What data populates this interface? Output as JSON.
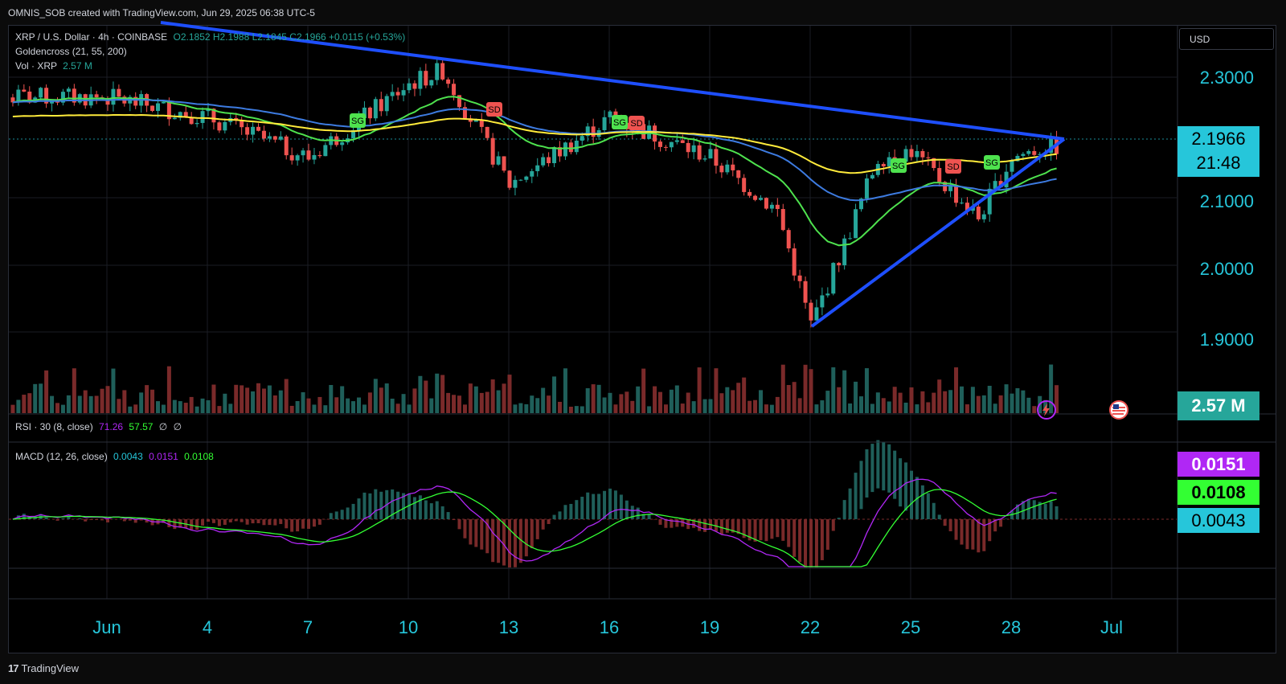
{
  "header": {
    "attribution": "OMNIS_SOB created with TradingView.com, Jun 29, 2025 06:38 UTC-5"
  },
  "footer": {
    "brand": "TradingView"
  },
  "legend": {
    "symbol": "XRP / U.S. Dollar · 4h · COINBASE",
    "ohlc": "O2.1852 H2.1988 L2.1845 C2.1966 +0.0115 (+0.53%)",
    "goldencross": "Goldencross (21, 55, 200)",
    "vol": "Vol · XRP",
    "vol_value": "2.57 M",
    "rsi": "RSI · 30 (8, close)",
    "rsi_v1": "71.26",
    "rsi_v2": "57.57",
    "rsi_v3": "∅",
    "rsi_v4": "∅",
    "macd": "MACD (12, 26, close)",
    "macd_hist": "0.0043",
    "macd_line": "0.0151",
    "macd_signal": "0.0108"
  },
  "axis": {
    "currency": "USD",
    "price_ticks": [
      "2.3000",
      "2.1000",
      "2.0000",
      "1.9000"
    ],
    "current_price": "2.1966",
    "countdown": "21:48",
    "volume_tag": "2.57 M",
    "macd_tags": [
      "0.0151",
      "0.0108",
      "0.0043"
    ],
    "date_ticks": [
      "Jun",
      "4",
      "7",
      "10",
      "13",
      "16",
      "19",
      "22",
      "25",
      "28",
      "Jul"
    ]
  },
  "colors": {
    "up": "#26a69a",
    "down": "#ef5350",
    "ema21": "#4ee24e",
    "ema55": "#3d7be0",
    "ema200": "#ffeb3b",
    "trendline": "#1e4fff",
    "price_tag": "#26c6da",
    "macd_line": "#b027f5",
    "macd_signal": "#33ff33"
  },
  "chart_data": {
    "type": "candlestick",
    "title": "XRP / U.S. Dollar · 4h · COINBASE",
    "x_range": [
      "2025-06-01",
      "2025-06-30"
    ],
    "ylim": [
      1.875,
      2.345
    ],
    "close_approx": {
      "x": [
        "Jun 1",
        "Jun 4",
        "Jun 7",
        "Jun 10",
        "Jun 11",
        "Jun 13",
        "Jun 16",
        "Jun 19",
        "Jun 21",
        "Jun 22",
        "Jun 23",
        "Jun 24",
        "Jun 25",
        "Jun 27",
        "Jun 28",
        "Jun 29"
      ],
      "y": [
        2.27,
        2.24,
        2.18,
        2.29,
        2.31,
        2.14,
        2.24,
        2.18,
        2.1,
        1.93,
        2.05,
        2.18,
        2.19,
        2.09,
        2.18,
        2.1966
      ]
    },
    "moving_averages": [
      {
        "name": "EMA 21",
        "color": "#4ee24e"
      },
      {
        "name": "EMA 55",
        "color": "#3d7be0"
      },
      {
        "name": "EMA 200",
        "color": "#ffeb3b"
      }
    ],
    "signals": [
      {
        "label": "SG",
        "date": "Jun 9"
      },
      {
        "label": "SD",
        "date": "Jun 12"
      },
      {
        "label": "SG",
        "date": "Jun 16"
      },
      {
        "label": "SD",
        "date": "Jun 17"
      },
      {
        "label": "SG",
        "date": "Jun 25"
      },
      {
        "label": "SD",
        "date": "Jun 27"
      },
      {
        "label": "SG",
        "date": "Jun 28"
      }
    ],
    "volume_last": "2.57 M",
    "rsi": {
      "values": [
        "71.26",
        "57.57"
      ]
    },
    "macd": {
      "macd": 0.0151,
      "signal": 0.0108,
      "histogram": 0.0043
    }
  }
}
